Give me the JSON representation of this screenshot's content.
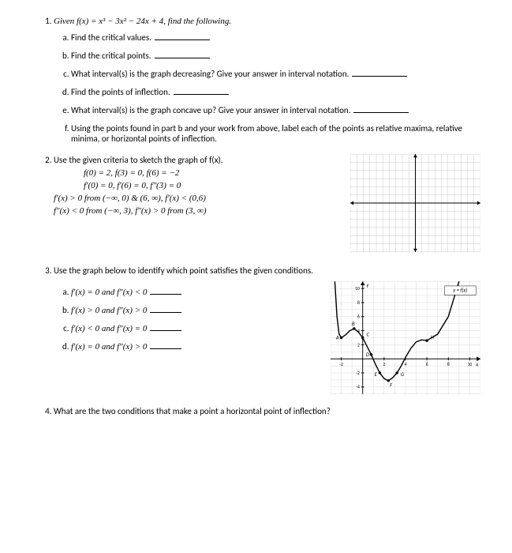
{
  "q1": {
    "stem": "Given f(x) = x³ − 3x² − 24x + 4, find the following.",
    "parts": {
      "a": "Find the critical values.",
      "b": "Find the critical points.",
      "c": "What interval(s) is the graph decreasing? Give your answer in interval notation.",
      "d": "Find the points of inflection.",
      "e": "What interval(s) is the graph concave up? Give your answer in interval notation.",
      "f": "Using the points found in part b and your work from above, label each of the points as relative maxima, relative minima, or horizontal points of inflection."
    }
  },
  "q2": {
    "stem": "Use the given criteria to sketch the graph of f(x).",
    "lines": {
      "l1": "f(0) = 2, f(3) = 0, f(6) = −2",
      "l2": "f′(0) = 0, f′(6) = 0, f″(3) = 0",
      "l3": "f′(x) > 0  from (−∞, 0) & (6, ∞), f′(x) < (0,6)",
      "l4": "f″(x) < 0  from (−∞, 3), f″(x) > 0  from (3, ∞)"
    },
    "grid": {
      "rows": 12,
      "cols": 20,
      "stroke": "#bfbfbf",
      "axis": "#000000"
    }
  },
  "q3": {
    "stem": "Use the graph below to identify which point satisfies the given conditions.",
    "parts": {
      "a": "f′(x) = 0 and f″(x) < 0",
      "b": "f′(x) > 0 and f″(x) > 0",
      "c": "f′(x) < 0 and f″(x) = 0",
      "d": "f′(x) = 0 and f″(x) > 0"
    },
    "graph": {
      "xmin": -3,
      "xmax": 11,
      "ymin": -5,
      "ymax": 11,
      "xticks": [
        -2,
        2,
        4,
        6,
        8,
        10
      ],
      "yticks": [
        -4,
        -2,
        2,
        4,
        6,
        8,
        10
      ],
      "grid_color": "#cccccc",
      "axis_color": "#000000",
      "curve_color": "#000000",
      "curve": [
        [
          -2.6,
          11
        ],
        [
          -2.4,
          6
        ],
        [
          -2.2,
          3.5
        ],
        [
          -2,
          3.0
        ],
        [
          -1.6,
          3.4
        ],
        [
          -1.2,
          4.0
        ],
        [
          -0.8,
          4.3
        ],
        [
          -0.4,
          3.8
        ],
        [
          0,
          3.0
        ],
        [
          0.4,
          1.8
        ],
        [
          0.8,
          0.6
        ],
        [
          1.2,
          -0.8
        ],
        [
          1.6,
          -2.0
        ],
        [
          2.0,
          -2.8
        ],
        [
          2.4,
          -3.1
        ],
        [
          2.8,
          -2.7
        ],
        [
          3.2,
          -2.0
        ],
        [
          3.6,
          -1.0
        ],
        [
          4,
          0.2
        ],
        [
          4.5,
          1.5
        ],
        [
          5,
          2.4
        ],
        [
          5.5,
          2.7
        ],
        [
          6,
          2.6
        ],
        [
          7,
          3.5
        ],
        [
          8,
          6.0
        ],
        [
          9,
          11
        ]
      ],
      "legend": "y = f(x)",
      "points": {
        "A": [
          -2,
          3.0
        ],
        "B": [
          -0.8,
          4.3
        ],
        "C": [
          0,
          3.0
        ],
        "D": [
          0.8,
          0.6
        ],
        "E": [
          1.6,
          -2.0
        ],
        "F": [
          2.4,
          -3.1
        ],
        "G": [
          3.2,
          -2.0
        ],
        "H": [
          6,
          2.6
        ]
      }
    }
  },
  "q4": {
    "stem": "What are the two conditions that make a point a horizontal point of inflection?"
  }
}
